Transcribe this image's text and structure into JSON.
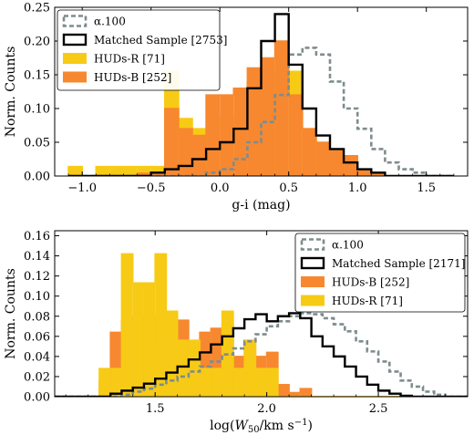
{
  "chart_data": [
    {
      "type": "histogram",
      "xlabel": "g-i (mag)",
      "ylabel": "Norm. Counts",
      "xlim": [
        -1.2,
        1.8
      ],
      "ylim": [
        0,
        0.25
      ],
      "xticks": [
        -1.0,
        -0.5,
        0.0,
        0.5,
        1.0,
        1.5
      ],
      "xtick_labels": [
        "−1.0",
        "−0.5",
        "0.0",
        "0.5",
        "1.0",
        "1.5"
      ],
      "yticks": [
        0.0,
        0.05,
        0.1,
        0.15,
        0.2,
        0.25
      ],
      "ytick_labels": [
        "0.00",
        "0.05",
        "0.10",
        "0.15",
        "0.20",
        "0.25"
      ],
      "bin_start": -1.1,
      "bin_width": 0.1,
      "legend_position": "top-left",
      "series": [
        {
          "name": "α.100",
          "style": "step-dashed",
          "color": "#7f8c8d",
          "values": [
            0,
            0,
            0,
            0,
            0,
            0,
            0,
            0,
            0,
            0,
            0.005,
            0.01,
            0.025,
            0.05,
            0.08,
            0.12,
            0.18,
            0.19,
            0.18,
            0.14,
            0.1,
            0.07,
            0.04,
            0.02,
            0.01,
            0.005,
            0,
            0
          ]
        },
        {
          "name": "Matched Sample [2753]",
          "style": "step-solid",
          "color": "#000000",
          "values": [
            0,
            0,
            0,
            0,
            0,
            0,
            0.005,
            0.01,
            0.015,
            0.025,
            0.04,
            0.05,
            0.07,
            0.13,
            0.2,
            0.24,
            0.165,
            0.1,
            0.06,
            0.04,
            0.02,
            0.01,
            0.005,
            0,
            0,
            0,
            0,
            0
          ]
        },
        {
          "name": "HUDs-R [71]",
          "style": "filled",
          "color": "#f7cb15",
          "values": [
            0.014,
            0,
            0.014,
            0.014,
            0.014,
            0.014,
            0.014,
            0.155,
            0.085,
            0.07,
            0.07,
            0.085,
            0.07,
            0.14,
            0.14,
            0.155,
            0.155,
            0.07,
            0.014,
            0.014,
            0.014,
            0,
            0,
            0,
            0,
            0,
            0,
            0
          ]
        },
        {
          "name": "HUDs-B [252]",
          "style": "filled",
          "color": "#f7882f",
          "values": [
            0,
            0,
            0,
            0,
            0,
            0.004,
            0.004,
            0.1,
            0.07,
            0.06,
            0.12,
            0.12,
            0.13,
            0.16,
            0.175,
            0.2,
            0.12,
            0.07,
            0.05,
            0.04,
            0.03,
            0.01,
            0.004,
            0,
            0,
            0,
            0,
            0
          ]
        }
      ],
      "legend_order": [
        0,
        1,
        2,
        3
      ]
    },
    {
      "type": "histogram",
      "xlabel": "log(W50/km s⁻¹)",
      "ylabel": "Norm. Counts",
      "xlim": [
        1.05,
        2.9
      ],
      "ylim": [
        0,
        0.165
      ],
      "xticks": [
        1.5,
        2.0,
        2.5
      ],
      "xtick_labels": [
        "1.5",
        "2.0",
        "2.5"
      ],
      "yticks": [
        0.0,
        0.02,
        0.04,
        0.06,
        0.08,
        0.1,
        0.12,
        0.14,
        0.16
      ],
      "ytick_labels": [
        "0.00",
        "0.02",
        "0.04",
        "0.06",
        "0.08",
        "0.10",
        "0.12",
        "0.14",
        "0.16"
      ],
      "bin_start": 1.05,
      "bin_width": 0.05,
      "legend_position": "top-right",
      "series": [
        {
          "name": "α.100",
          "style": "step-dashed",
          "color": "#7f8c8d",
          "values": [
            0,
            0,
            0,
            0,
            0,
            0,
            0.002,
            0.005,
            0.008,
            0.012,
            0.016,
            0.02,
            0.025,
            0.03,
            0.035,
            0.042,
            0.048,
            0.055,
            0.062,
            0.07,
            0.075,
            0.08,
            0.083,
            0.082,
            0.078,
            0.072,
            0.065,
            0.055,
            0.045,
            0.035,
            0.025,
            0.016,
            0.01,
            0.005,
            0.002,
            0,
            0
          ]
        },
        {
          "name": "Matched Sample [2171]",
          "style": "step-solid",
          "color": "#000000",
          "values": [
            0,
            0,
            0,
            0,
            0,
            0.003,
            0.006,
            0.009,
            0.013,
            0.018,
            0.024,
            0.03,
            0.037,
            0.044,
            0.052,
            0.06,
            0.068,
            0.077,
            0.082,
            0.075,
            0.08,
            0.083,
            0.078,
            0.06,
            0.05,
            0.04,
            0.03,
            0.02,
            0.012,
            0.006,
            0.003,
            0.001,
            0,
            0,
            0,
            0,
            0
          ]
        },
        {
          "name": "HUDs-B [252]",
          "style": "filled",
          "color": "#f7882f",
          "values": [
            0,
            0,
            0,
            0,
            0.016,
            0.064,
            0.076,
            0.08,
            0.08,
            0.06,
            0.084,
            0.076,
            0.048,
            0.064,
            0.068,
            0.072,
            0.04,
            0.056,
            0.04,
            0.044,
            0.012,
            0.004,
            0.008,
            0,
            0,
            0,
            0,
            0,
            0,
            0,
            0,
            0,
            0,
            0,
            0,
            0,
            0
          ]
        },
        {
          "name": "HUDs-R [71]",
          "style": "filled",
          "color": "#f7cb15",
          "values": [
            0,
            0,
            0,
            0,
            0.028,
            0.028,
            0.142,
            0.113,
            0.113,
            0.142,
            0.085,
            0.056,
            0.056,
            0.028,
            0.028,
            0.085,
            0.028,
            0.056,
            0.028,
            0.028,
            0,
            0,
            0,
            0,
            0,
            0,
            0,
            0,
            0,
            0,
            0,
            0,
            0,
            0,
            0,
            0,
            0
          ]
        }
      ],
      "legend_order": [
        0,
        1,
        2,
        3
      ]
    }
  ]
}
